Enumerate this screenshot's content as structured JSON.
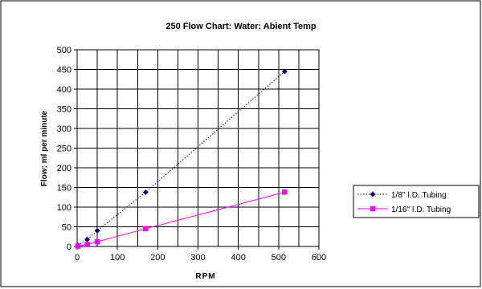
{
  "chart_data": {
    "type": "line",
    "title": "250 Flow Chart:  Water: Abient Temp",
    "xlabel": "RPM",
    "ylabel": "Flow:  ml per minute",
    "xlim": [
      0,
      600
    ],
    "ylim": [
      0,
      500
    ],
    "xticks": [
      0,
      100,
      200,
      300,
      400,
      500,
      600
    ],
    "yticks": [
      0,
      50,
      100,
      150,
      200,
      250,
      300,
      350,
      400,
      450,
      500
    ],
    "grid": true,
    "legend_position": "right",
    "series": [
      {
        "name": "1/8\" I.D. Tubing",
        "color": "#000080",
        "marker": "diamond",
        "line_style": "dotted",
        "x": [
          2,
          25,
          50,
          170,
          515
        ],
        "y": [
          3,
          18,
          40,
          138,
          445
        ]
      },
      {
        "name": "1/16\" I.D. Tubing",
        "color": "#FF00FF",
        "marker": "square",
        "line_style": "solid",
        "x": [
          2,
          25,
          50,
          170,
          515
        ],
        "y": [
          1,
          5,
          12,
          45,
          138
        ]
      }
    ]
  }
}
